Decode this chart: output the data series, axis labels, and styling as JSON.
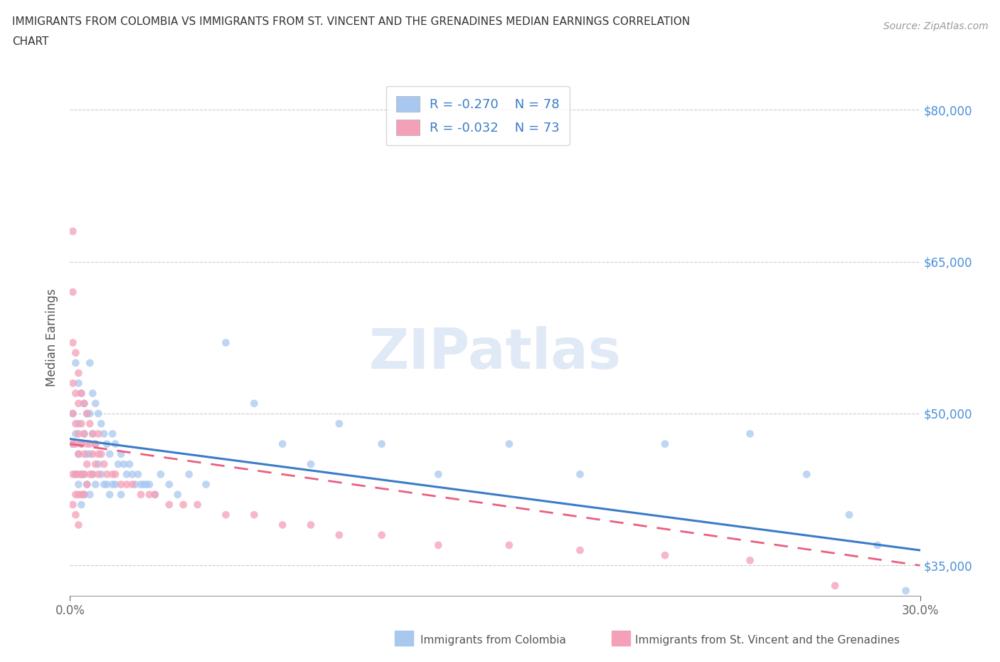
{
  "title_line1": "IMMIGRANTS FROM COLOMBIA VS IMMIGRANTS FROM ST. VINCENT AND THE GRENADINES MEDIAN EARNINGS CORRELATION",
  "title_line2": "CHART",
  "source": "Source: ZipAtlas.com",
  "ylabel": "Median Earnings",
  "xlim": [
    0.0,
    0.3
  ],
  "ylim": [
    32000,
    83000
  ],
  "yticks": [
    35000,
    50000,
    65000,
    80000
  ],
  "xtick_labels": [
    "0.0%",
    "30.0%"
  ],
  "colombia_R": "-0.270",
  "colombia_N": "78",
  "stvincent_R": "-0.032",
  "stvincent_N": "73",
  "colombia_color": "#a8c8f0",
  "stvincent_color": "#f4a0b8",
  "trend_colombia_color": "#3a7cc7",
  "trend_stvincent_color": "#e86080",
  "scatter_alpha": 0.75,
  "scatter_size": 60,
  "colombia_x": [
    0.001,
    0.001,
    0.002,
    0.002,
    0.002,
    0.003,
    0.003,
    0.003,
    0.003,
    0.004,
    0.004,
    0.004,
    0.004,
    0.005,
    0.005,
    0.005,
    0.005,
    0.006,
    0.006,
    0.006,
    0.007,
    0.007,
    0.007,
    0.007,
    0.008,
    0.008,
    0.008,
    0.009,
    0.009,
    0.009,
    0.01,
    0.01,
    0.011,
    0.011,
    0.012,
    0.012,
    0.013,
    0.013,
    0.014,
    0.014,
    0.015,
    0.015,
    0.016,
    0.016,
    0.017,
    0.018,
    0.018,
    0.019,
    0.02,
    0.021,
    0.022,
    0.023,
    0.024,
    0.025,
    0.026,
    0.027,
    0.028,
    0.03,
    0.032,
    0.035,
    0.038,
    0.042,
    0.048,
    0.055,
    0.065,
    0.075,
    0.085,
    0.095,
    0.11,
    0.13,
    0.155,
    0.18,
    0.21,
    0.24,
    0.26,
    0.275,
    0.285,
    0.295
  ],
  "colombia_y": [
    50000,
    47000,
    55000,
    48000,
    44000,
    53000,
    49000,
    46000,
    43000,
    52000,
    47000,
    44000,
    41000,
    51000,
    48000,
    44000,
    42000,
    50000,
    46000,
    43000,
    55000,
    50000,
    46000,
    42000,
    52000,
    48000,
    44000,
    51000,
    47000,
    43000,
    50000,
    45000,
    49000,
    44000,
    48000,
    43000,
    47000,
    43000,
    46000,
    42000,
    48000,
    43000,
    47000,
    43000,
    45000,
    46000,
    42000,
    45000,
    44000,
    45000,
    44000,
    43000,
    44000,
    43000,
    43000,
    43000,
    43000,
    42000,
    44000,
    43000,
    42000,
    44000,
    43000,
    57000,
    51000,
    47000,
    45000,
    49000,
    47000,
    44000,
    47000,
    44000,
    47000,
    48000,
    44000,
    40000,
    37000,
    32500
  ],
  "stvincent_x": [
    0.001,
    0.001,
    0.001,
    0.001,
    0.001,
    0.001,
    0.001,
    0.001,
    0.002,
    0.002,
    0.002,
    0.002,
    0.002,
    0.002,
    0.002,
    0.003,
    0.003,
    0.003,
    0.003,
    0.003,
    0.003,
    0.003,
    0.004,
    0.004,
    0.004,
    0.004,
    0.004,
    0.005,
    0.005,
    0.005,
    0.005,
    0.005,
    0.006,
    0.006,
    0.006,
    0.006,
    0.007,
    0.007,
    0.007,
    0.008,
    0.008,
    0.008,
    0.009,
    0.009,
    0.01,
    0.01,
    0.01,
    0.011,
    0.012,
    0.013,
    0.015,
    0.016,
    0.018,
    0.02,
    0.022,
    0.025,
    0.028,
    0.03,
    0.035,
    0.04,
    0.045,
    0.055,
    0.065,
    0.075,
    0.085,
    0.095,
    0.11,
    0.13,
    0.155,
    0.18,
    0.21,
    0.24,
    0.27
  ],
  "stvincent_y": [
    68000,
    62000,
    57000,
    53000,
    50000,
    47000,
    44000,
    41000,
    56000,
    52000,
    49000,
    47000,
    44000,
    42000,
    40000,
    54000,
    51000,
    48000,
    46000,
    44000,
    42000,
    39000,
    52000,
    49000,
    47000,
    44000,
    42000,
    51000,
    48000,
    46000,
    44000,
    42000,
    50000,
    47000,
    45000,
    43000,
    49000,
    47000,
    44000,
    48000,
    46000,
    44000,
    47000,
    45000,
    48000,
    46000,
    44000,
    46000,
    45000,
    44000,
    44000,
    44000,
    43000,
    43000,
    43000,
    42000,
    42000,
    42000,
    41000,
    41000,
    41000,
    40000,
    40000,
    39000,
    39000,
    38000,
    38000,
    37000,
    37000,
    36500,
    36000,
    35500,
    33000
  ]
}
